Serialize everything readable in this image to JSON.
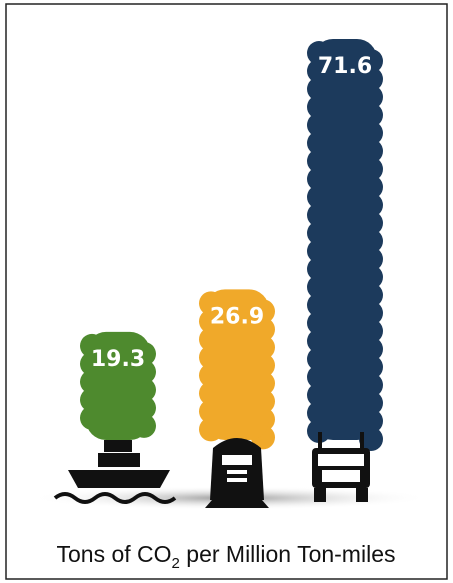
{
  "chart_data": {
    "type": "bar",
    "caption": [
      "Tons of CO",
      "2",
      " per Million Ton-miles"
    ],
    "values": [
      19.3,
      26.9,
      71.6
    ],
    "colors": [
      "#4e8a2e",
      "#f0a92a",
      "#1c3a5c"
    ]
  }
}
